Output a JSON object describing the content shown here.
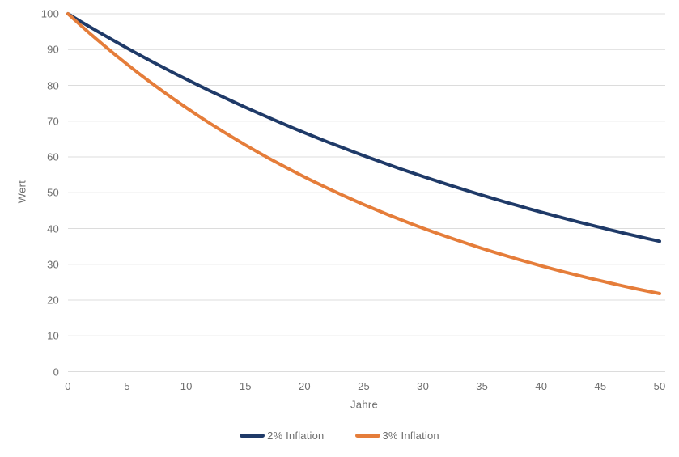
{
  "chart_data": {
    "type": "line",
    "title": "",
    "xlabel": "Jahre",
    "ylabel": "Wert",
    "xlim": [
      0,
      50
    ],
    "ylim": [
      0,
      100
    ],
    "xticks": [
      0,
      5,
      10,
      15,
      20,
      25,
      30,
      35,
      40,
      45,
      50
    ],
    "yticks": [
      0,
      10,
      20,
      30,
      40,
      50,
      60,
      70,
      80,
      90,
      100
    ],
    "grid": "horizontal-only",
    "grid_color": "#dcdcdc",
    "tick_text_color": "#6e6e6e",
    "legend_position": "bottom-center",
    "x": [
      0,
      1,
      2,
      3,
      4,
      5,
      6,
      7,
      8,
      9,
      10,
      11,
      12,
      13,
      14,
      15,
      16,
      17,
      18,
      19,
      20,
      21,
      22,
      23,
      24,
      25,
      26,
      27,
      28,
      29,
      30,
      31,
      32,
      33,
      34,
      35,
      36,
      37,
      38,
      39,
      40,
      41,
      42,
      43,
      44,
      45,
      46,
      47,
      48,
      49,
      50
    ],
    "series": [
      {
        "name": "2% Inflation",
        "color": "#1f3a68",
        "values": [
          100,
          98,
          96.04,
          94.12,
          92.24,
          90.39,
          88.58,
          86.81,
          85.08,
          83.37,
          81.71,
          80.07,
          78.47,
          76.9,
          75.36,
          73.86,
          72.38,
          70.93,
          69.51,
          68.12,
          66.76,
          65.43,
          64.12,
          62.84,
          61.58,
          60.35,
          59.14,
          57.96,
          56.8,
          55.66,
          54.55,
          53.46,
          52.39,
          51.34,
          50.31,
          49.31,
          48.32,
          47.35,
          46.41,
          45.48,
          44.57,
          43.68,
          42.81,
          41.95,
          41.11,
          40.29,
          39.48,
          38.69,
          37.92,
          37.16,
          36.42
        ]
      },
      {
        "name": "3% Inflation",
        "color": "#e57d3a",
        "values": [
          100,
          97,
          94.09,
          91.27,
          88.53,
          85.87,
          83.3,
          80.8,
          78.37,
          76.02,
          73.74,
          71.53,
          69.38,
          67.3,
          65.28,
          63.33,
          61.43,
          59.58,
          57.8,
          56.06,
          54.38,
          52.75,
          51.17,
          49.63,
          48.14,
          46.7,
          45.3,
          43.94,
          42.62,
          41.34,
          40.1,
          38.9,
          37.73,
          36.6,
          35.5,
          34.44,
          33.4,
          32.4,
          31.43,
          30.49,
          29.57,
          28.68,
          27.82,
          26.99,
          26.18,
          25.39,
          24.63,
          23.89,
          23.17,
          22.48,
          21.8
        ]
      }
    ]
  }
}
